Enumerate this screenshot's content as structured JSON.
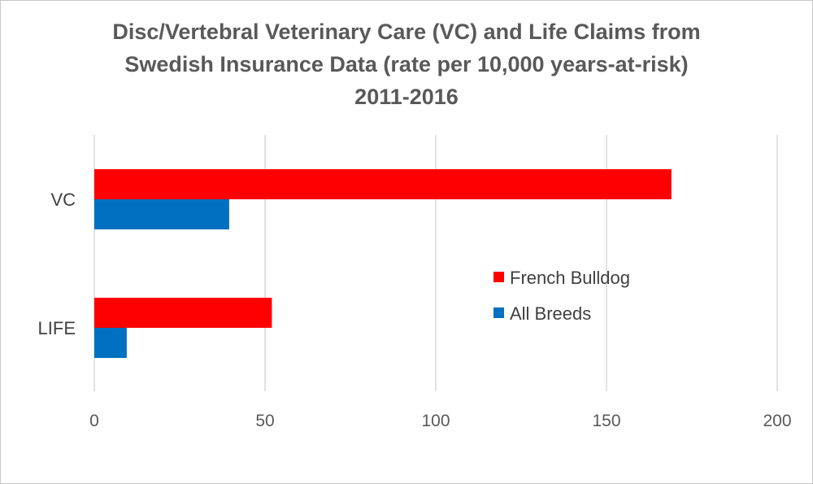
{
  "chart_data": {
    "type": "bar",
    "orientation": "horizontal",
    "title_lines": [
      "Disc/Vertebral Veterinary Care (VC) and Life Claims from",
      "Swedish Insurance Data (rate per 10,000 years-at-risk)",
      "2011-2016"
    ],
    "categories": [
      "VC",
      "LIFE"
    ],
    "series": [
      {
        "name": "French Bulldog",
        "color": "#ff0000",
        "values": [
          169,
          52
        ]
      },
      {
        "name": "All Breeds",
        "color": "#0070c0",
        "values": [
          39.5,
          9.5
        ]
      }
    ],
    "xlim": [
      0,
      200
    ],
    "xticks": [
      0,
      50,
      100,
      150,
      200
    ],
    "grid": true,
    "legend_position": "right-middle"
  }
}
